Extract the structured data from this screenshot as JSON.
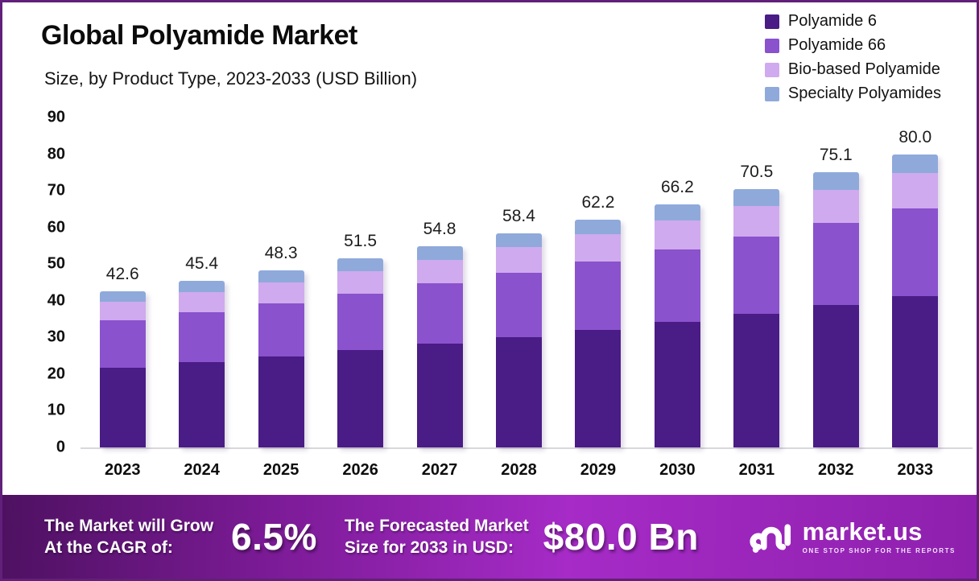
{
  "header": {
    "title": "Global Polyamide Market",
    "subtitle": "Size, by Product Type, 2023-2033 (USD Billion)"
  },
  "chart_data": {
    "type": "bar",
    "stacked": true,
    "title": "Global Polyamide Market",
    "subtitle": "Size, by Product Type, 2023-2033 (USD Billion)",
    "xlabel": "",
    "ylabel": "",
    "ylim": [
      0,
      90
    ],
    "yticks": [
      0,
      10,
      20,
      30,
      40,
      50,
      60,
      70,
      80,
      90
    ],
    "grid": false,
    "legend_position": "top-right",
    "categories": [
      "2023",
      "2024",
      "2025",
      "2026",
      "2027",
      "2028",
      "2029",
      "2030",
      "2031",
      "2032",
      "2033"
    ],
    "series": [
      {
        "name": "Polyamide 6",
        "color": "#4a1c86",
        "values": [
          21.8,
          23.3,
          24.9,
          26.6,
          28.3,
          30.1,
          32.1,
          34.2,
          36.4,
          38.8,
          41.3
        ]
      },
      {
        "name": "Polyamide 66",
        "color": "#8a52cd",
        "values": [
          12.9,
          13.7,
          14.5,
          15.4,
          16.4,
          17.5,
          18.6,
          19.8,
          21.1,
          22.5,
          24.0
        ]
      },
      {
        "name": "Bio-based Polyamide",
        "color": "#cfaaee",
        "values": [
          5.0,
          5.3,
          5.7,
          6.1,
          6.5,
          7.0,
          7.4,
          7.9,
          8.4,
          8.9,
          9.5
        ]
      },
      {
        "name": "Specialty Polyamides",
        "color": "#8fa9db",
        "values": [
          2.9,
          3.1,
          3.2,
          3.4,
          3.6,
          3.8,
          4.1,
          4.3,
          4.6,
          4.9,
          5.2
        ]
      }
    ],
    "totals": [
      42.6,
      45.4,
      48.3,
      51.5,
      54.8,
      58.4,
      62.2,
      66.2,
      70.5,
      75.1,
      80.0
    ],
    "totals_labels": [
      "42.6",
      "45.4",
      "48.3",
      "51.5",
      "54.8",
      "58.4",
      "62.2",
      "66.2",
      "70.5",
      "75.1",
      "80.0"
    ]
  },
  "banner": {
    "cagr_label_line1": "The Market will Grow",
    "cagr_label_line2": "At the CAGR of:",
    "cagr_value": "6.5%",
    "forecast_label_line1": "The Forecasted Market",
    "forecast_label_line2": "Size for 2033 in USD:",
    "forecast_value": "$80.0 Bn",
    "brand": {
      "name": "market.us",
      "tagline": "ONE STOP SHOP FOR THE REPORTS"
    }
  },
  "colors": {
    "border": "#61207a",
    "banner_gradient_start": "#4e1161",
    "banner_gradient_mid": "#a62bc7",
    "banner_gradient_end": "#8e20ad",
    "axis_line": "#d9d7dc",
    "text": "#111111"
  }
}
